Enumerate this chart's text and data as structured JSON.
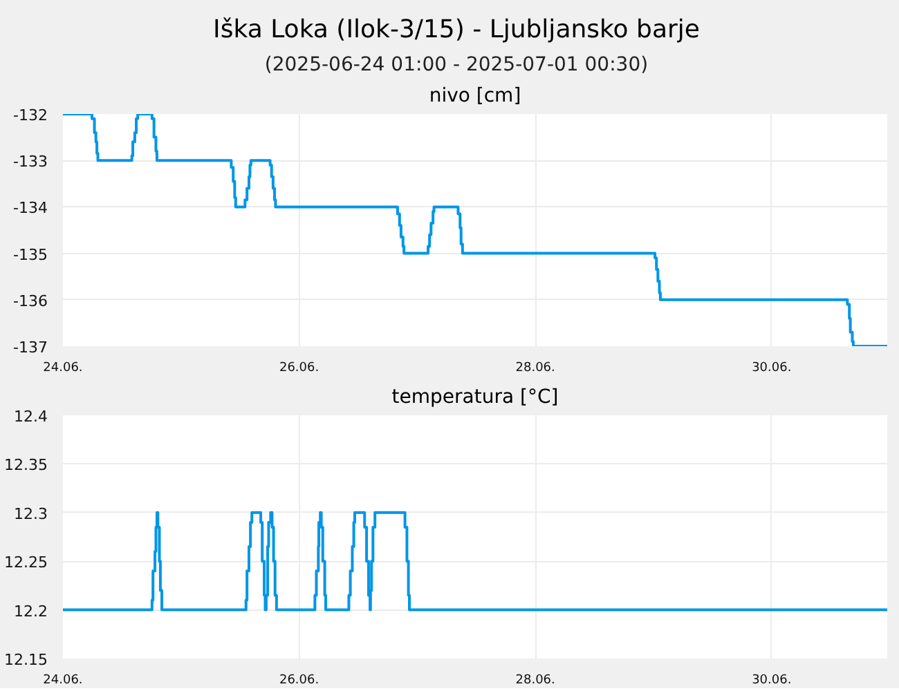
{
  "chart_data": [
    {
      "type": "other",
      "title": "Iška Loka (Ilok-3/15) - Ljubljansko barje",
      "subtitle": "(2025-06-24 01:00 - 2025-07-01 00:30)"
    },
    {
      "type": "step",
      "title": "nivo [cm]",
      "grid": true,
      "xlim": [
        "2025-06-24T00:00",
        "2025-06-30T23:30"
      ],
      "ylim": [
        -137,
        -132
      ],
      "xticks": [
        {
          "value": "2025-06-24",
          "label": "24.06."
        },
        {
          "value": "2025-06-26",
          "label": "26.06."
        },
        {
          "value": "2025-06-28",
          "label": "28.06."
        },
        {
          "value": "2025-06-30",
          "label": "30.06."
        }
      ],
      "yticks": [
        -137,
        -136,
        -135,
        -134,
        -133,
        -132
      ],
      "x": [
        "2025-06-24T00:00",
        "2025-06-24T05:54",
        "2025-06-24T06:24",
        "2025-06-24T06:42",
        "2025-06-24T06:54",
        "2025-06-24T07:06",
        "2025-06-24T14:00",
        "2025-06-24T14:12",
        "2025-06-24T14:36",
        "2025-06-24T14:54",
        "2025-06-24T15:12",
        "2025-06-24T18:06",
        "2025-06-24T18:30",
        "2025-06-24T18:54",
        "2025-06-24T19:06",
        "2025-06-25T10:12",
        "2025-06-25T10:36",
        "2025-06-25T10:54",
        "2025-06-25T11:06",
        "2025-06-25T13:00",
        "2025-06-25T13:24",
        "2025-06-25T13:48",
        "2025-06-25T14:00",
        "2025-06-25T14:12",
        "2025-06-25T18:06",
        "2025-06-25T18:24",
        "2025-06-25T18:42",
        "2025-06-25T19:00",
        "2025-06-25T19:12",
        "2025-06-26T20:00",
        "2025-06-26T20:24",
        "2025-06-26T20:42",
        "2025-06-26T21:06",
        "2025-06-26T21:18",
        "2025-06-27T02:12",
        "2025-06-27T02:30",
        "2025-06-27T02:48",
        "2025-06-27T03:12",
        "2025-06-27T03:24",
        "2025-06-27T08:18",
        "2025-06-27T08:42",
        "2025-06-27T08:54",
        "2025-06-27T09:12",
        "2025-06-29T00:18",
        "2025-06-29T00:36",
        "2025-06-29T00:54",
        "2025-06-29T01:12",
        "2025-06-29T01:24",
        "2025-06-30T15:24",
        "2025-06-30T15:48",
        "2025-06-30T16:00",
        "2025-06-30T16:24",
        "2025-06-30T16:36",
        "2025-06-30T23:30"
      ],
      "series": [
        {
          "color": "#0096e6",
          "values": [
            -132,
            -132.1,
            -132.4,
            -132.6,
            -132.85,
            -133,
            -132.9,
            -132.6,
            -132.4,
            -132.1,
            -132,
            -132.1,
            -132.5,
            -132.8,
            -133,
            -133.15,
            -133.45,
            -133.8,
            -134,
            -133.85,
            -133.6,
            -133.35,
            -133.1,
            -133,
            -133.1,
            -133.35,
            -133.6,
            -133.85,
            -134,
            -134.15,
            -134.4,
            -134.65,
            -134.85,
            -135,
            -134.85,
            -134.6,
            -134.35,
            -134.1,
            -134,
            -134.15,
            -134.45,
            -134.8,
            -135,
            -135.1,
            -135.35,
            -135.6,
            -135.85,
            -136,
            -136.1,
            -136.4,
            -136.7,
            -136.9,
            -137,
            -137
          ]
        }
      ]
    },
    {
      "type": "step",
      "title": "temperatura [°C]",
      "grid": true,
      "xlim": [
        "2025-06-24T00:00",
        "2025-06-30T23:30"
      ],
      "ylim": [
        12.15,
        12.4
      ],
      "xticks": [
        {
          "value": "2025-06-24",
          "label": "24.06."
        },
        {
          "value": "2025-06-26",
          "label": "26.06."
        },
        {
          "value": "2025-06-28",
          "label": "28.06."
        },
        {
          "value": "2025-06-30",
          "label": "30.06."
        }
      ],
      "yticks": [
        12.15,
        12.2,
        12.25,
        12.3,
        12.35,
        12.4
      ],
      "x": [
        "2025-06-24T00:00",
        "2025-06-24T18:06",
        "2025-06-24T18:18",
        "2025-06-24T18:42",
        "2025-06-24T18:54",
        "2025-06-24T19:06",
        "2025-06-24T19:18",
        "2025-06-24T19:36",
        "2025-06-24T19:48",
        "2025-06-24T20:06",
        "2025-06-25T13:12",
        "2025-06-25T13:24",
        "2025-06-25T13:48",
        "2025-06-25T14:06",
        "2025-06-25T14:24",
        "2025-06-25T16:12",
        "2025-06-25T16:30",
        "2025-06-25T16:54",
        "2025-06-25T17:06",
        "2025-06-25T17:18",
        "2025-06-25T17:36",
        "2025-06-25T17:48",
        "2025-06-25T18:12",
        "2025-06-25T18:30",
        "2025-06-25T18:48",
        "2025-06-25T19:06",
        "2025-06-25T19:24",
        "2025-06-26T03:12",
        "2025-06-26T03:30",
        "2025-06-26T03:54",
        "2025-06-26T04:00",
        "2025-06-26T04:18",
        "2025-06-26T04:30",
        "2025-06-26T04:48",
        "2025-06-26T05:12",
        "2025-06-26T05:24",
        "2025-06-26T10:06",
        "2025-06-26T10:24",
        "2025-06-26T10:48",
        "2025-06-26T11:06",
        "2025-06-26T11:18",
        "2025-06-26T13:18",
        "2025-06-26T13:42",
        "2025-06-26T14:06",
        "2025-06-26T14:24",
        "2025-06-26T14:30",
        "2025-06-26T14:42",
        "2025-06-26T15:00",
        "2025-06-26T15:24",
        "2025-06-26T21:30",
        "2025-06-26T21:54",
        "2025-06-26T22:12",
        "2025-06-26T22:24",
        "2025-06-30T23:30"
      ],
      "series": [
        {
          "color": "#0096e6",
          "values": [
            12.2,
            12.21,
            12.24,
            12.26,
            12.285,
            12.3,
            12.285,
            12.25,
            12.22,
            12.2,
            12.21,
            12.24,
            12.265,
            12.29,
            12.3,
            12.29,
            12.25,
            12.215,
            12.2,
            12.215,
            12.265,
            12.29,
            12.3,
            12.285,
            12.25,
            12.215,
            12.2,
            12.215,
            12.24,
            12.265,
            12.29,
            12.3,
            12.285,
            12.25,
            12.215,
            12.2,
            12.215,
            12.24,
            12.265,
            12.29,
            12.3,
            12.285,
            12.25,
            12.215,
            12.2,
            12.22,
            12.25,
            12.285,
            12.3,
            12.285,
            12.25,
            12.215,
            12.2,
            12.2
          ]
        }
      ]
    }
  ]
}
